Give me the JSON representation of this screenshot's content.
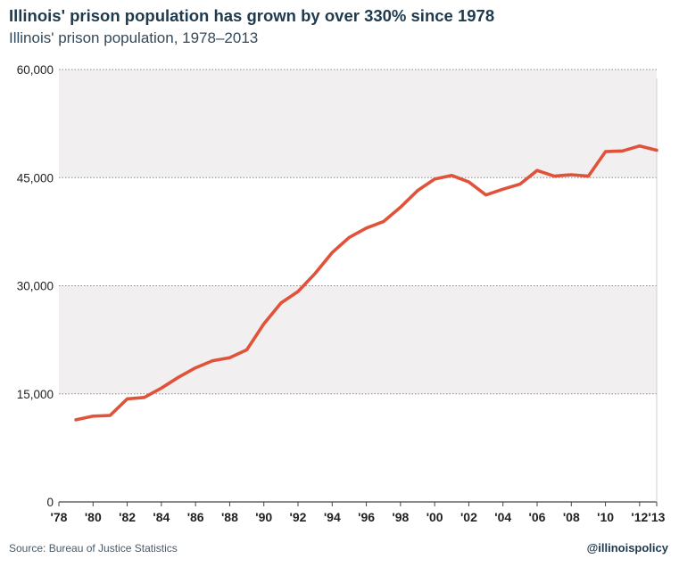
{
  "header": {
    "title": "Illinois' prison population has grown by over 330% since 1978",
    "subtitle": "Illinois' prison population, 1978–2013"
  },
  "footer": {
    "source": "Source: Bureau of Justice Statistics",
    "handle": "@illinoispolicy"
  },
  "chart_data": {
    "type": "line",
    "title": "Illinois' prison population has grown by over 330% since 1978",
    "subtitle": "Illinois' prison population, 1978–2013",
    "xlabel": "",
    "ylabel": "",
    "xlim": [
      1978,
      2013
    ],
    "ylim": [
      0,
      60000
    ],
    "grid": true,
    "legend": "none",
    "line_color": "#e0533a",
    "y_ticks": [
      0,
      15000,
      30000,
      45000,
      60000
    ],
    "y_tick_labels": [
      "0",
      "15,000",
      "30,000",
      "45,000",
      "60,000"
    ],
    "x_ticks": [
      1978,
      1980,
      1982,
      1984,
      1986,
      1988,
      1990,
      1992,
      1994,
      1996,
      1998,
      2000,
      2002,
      2004,
      2006,
      2008,
      2010,
      2012,
      2013
    ],
    "x_tick_labels": [
      "'78",
      "'80",
      "'82",
      "'84",
      "'86",
      "'88",
      "'90",
      "'92",
      "'94",
      "'96",
      "'98",
      "'00",
      "'02",
      "'04",
      "'06",
      "'08",
      "'10",
      "'12",
      "'13"
    ],
    "series": [
      {
        "x": [
          1979,
          1980,
          1981,
          1982,
          1983,
          1984,
          1985,
          1986,
          1987,
          1988,
          1989,
          1990,
          1991,
          1992,
          1993,
          1994,
          1995,
          1996,
          1997,
          1998,
          1999,
          2000,
          2001,
          2002,
          2003,
          2004,
          2005,
          2006,
          2007,
          2008,
          2009,
          2010,
          2011,
          2012,
          2013
        ],
        "values": [
          11400,
          11900,
          12000,
          14300,
          14500,
          15800,
          17300,
          18600,
          19600,
          20000,
          21100,
          24700,
          27600,
          29200,
          31700,
          34600,
          36700,
          38000,
          38900,
          40900,
          43200,
          44800,
          45300,
          44400,
          42600,
          43400,
          44100,
          46000,
          45200,
          45400,
          45200,
          48600,
          48700,
          49400,
          48800
        ]
      }
    ]
  }
}
